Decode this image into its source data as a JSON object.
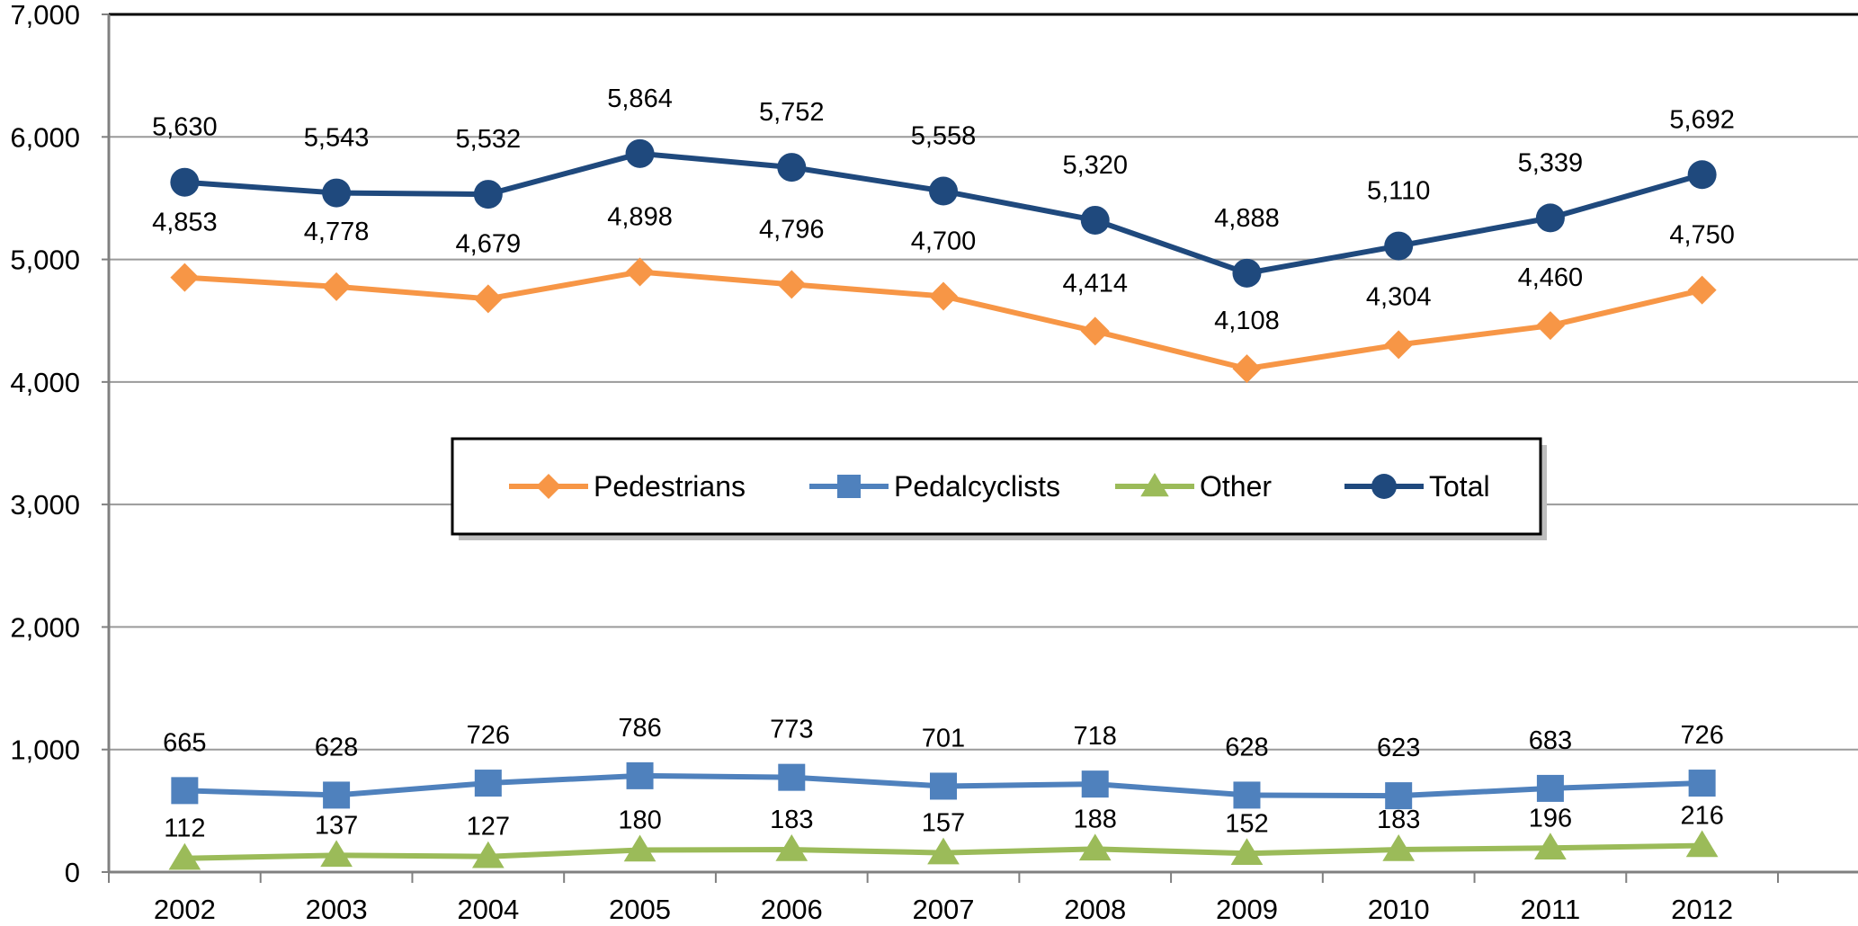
{
  "chart_data": {
    "type": "line",
    "title": "",
    "xlabel": "",
    "ylabel": "",
    "categories": [
      "2002",
      "2003",
      "2004",
      "2005",
      "2006",
      "2007",
      "2008",
      "2009",
      "2010",
      "2011",
      "2012"
    ],
    "ylim": [
      0,
      7000
    ],
    "yticks": [
      0,
      1000,
      2000,
      3000,
      4000,
      5000,
      6000,
      7000
    ],
    "ytick_labels": [
      "0",
      "1,000",
      "2,000",
      "3,000",
      "4,000",
      "5,000",
      "6,000",
      "7,000"
    ],
    "grid": true,
    "legend_position": "center",
    "series": [
      {
        "name": "Pedestrians",
        "marker": "diamond",
        "color": "#f79646",
        "values": [
          4853,
          4778,
          4679,
          4898,
          4796,
          4700,
          4414,
          4108,
          4304,
          4460,
          4750
        ],
        "labels": [
          "4,853",
          "4,778",
          "4,679",
          "4,898",
          "4,796",
          "4,700",
          "4,414",
          "4,108",
          "4,304",
          "4,460",
          "4,750"
        ]
      },
      {
        "name": "Pedalcyclists",
        "marker": "square",
        "color": "#4f81bd",
        "values": [
          665,
          628,
          726,
          786,
          773,
          701,
          718,
          628,
          623,
          683,
          726
        ],
        "labels": [
          "665",
          "628",
          "726",
          "786",
          "773",
          "701",
          "718",
          "628",
          "623",
          "683",
          "726"
        ]
      },
      {
        "name": "Other",
        "marker": "triangle",
        "color": "#9bbb59",
        "values": [
          112,
          137,
          127,
          180,
          183,
          157,
          188,
          152,
          183,
          196,
          216
        ],
        "labels": [
          "112",
          "137",
          "127",
          "180",
          "183",
          "157",
          "188",
          "152",
          "183",
          "196",
          "216"
        ]
      },
      {
        "name": "Total",
        "marker": "circle",
        "color": "#1f497d",
        "values": [
          5630,
          5543,
          5532,
          5864,
          5752,
          5558,
          5320,
          4888,
          5110,
          5339,
          5692
        ],
        "labels": [
          "5,630",
          "5,543",
          "5,532",
          "5,864",
          "5,752",
          "5,558",
          "5,320",
          "4,888",
          "5,110",
          "5,339",
          "5,692"
        ]
      }
    ]
  }
}
